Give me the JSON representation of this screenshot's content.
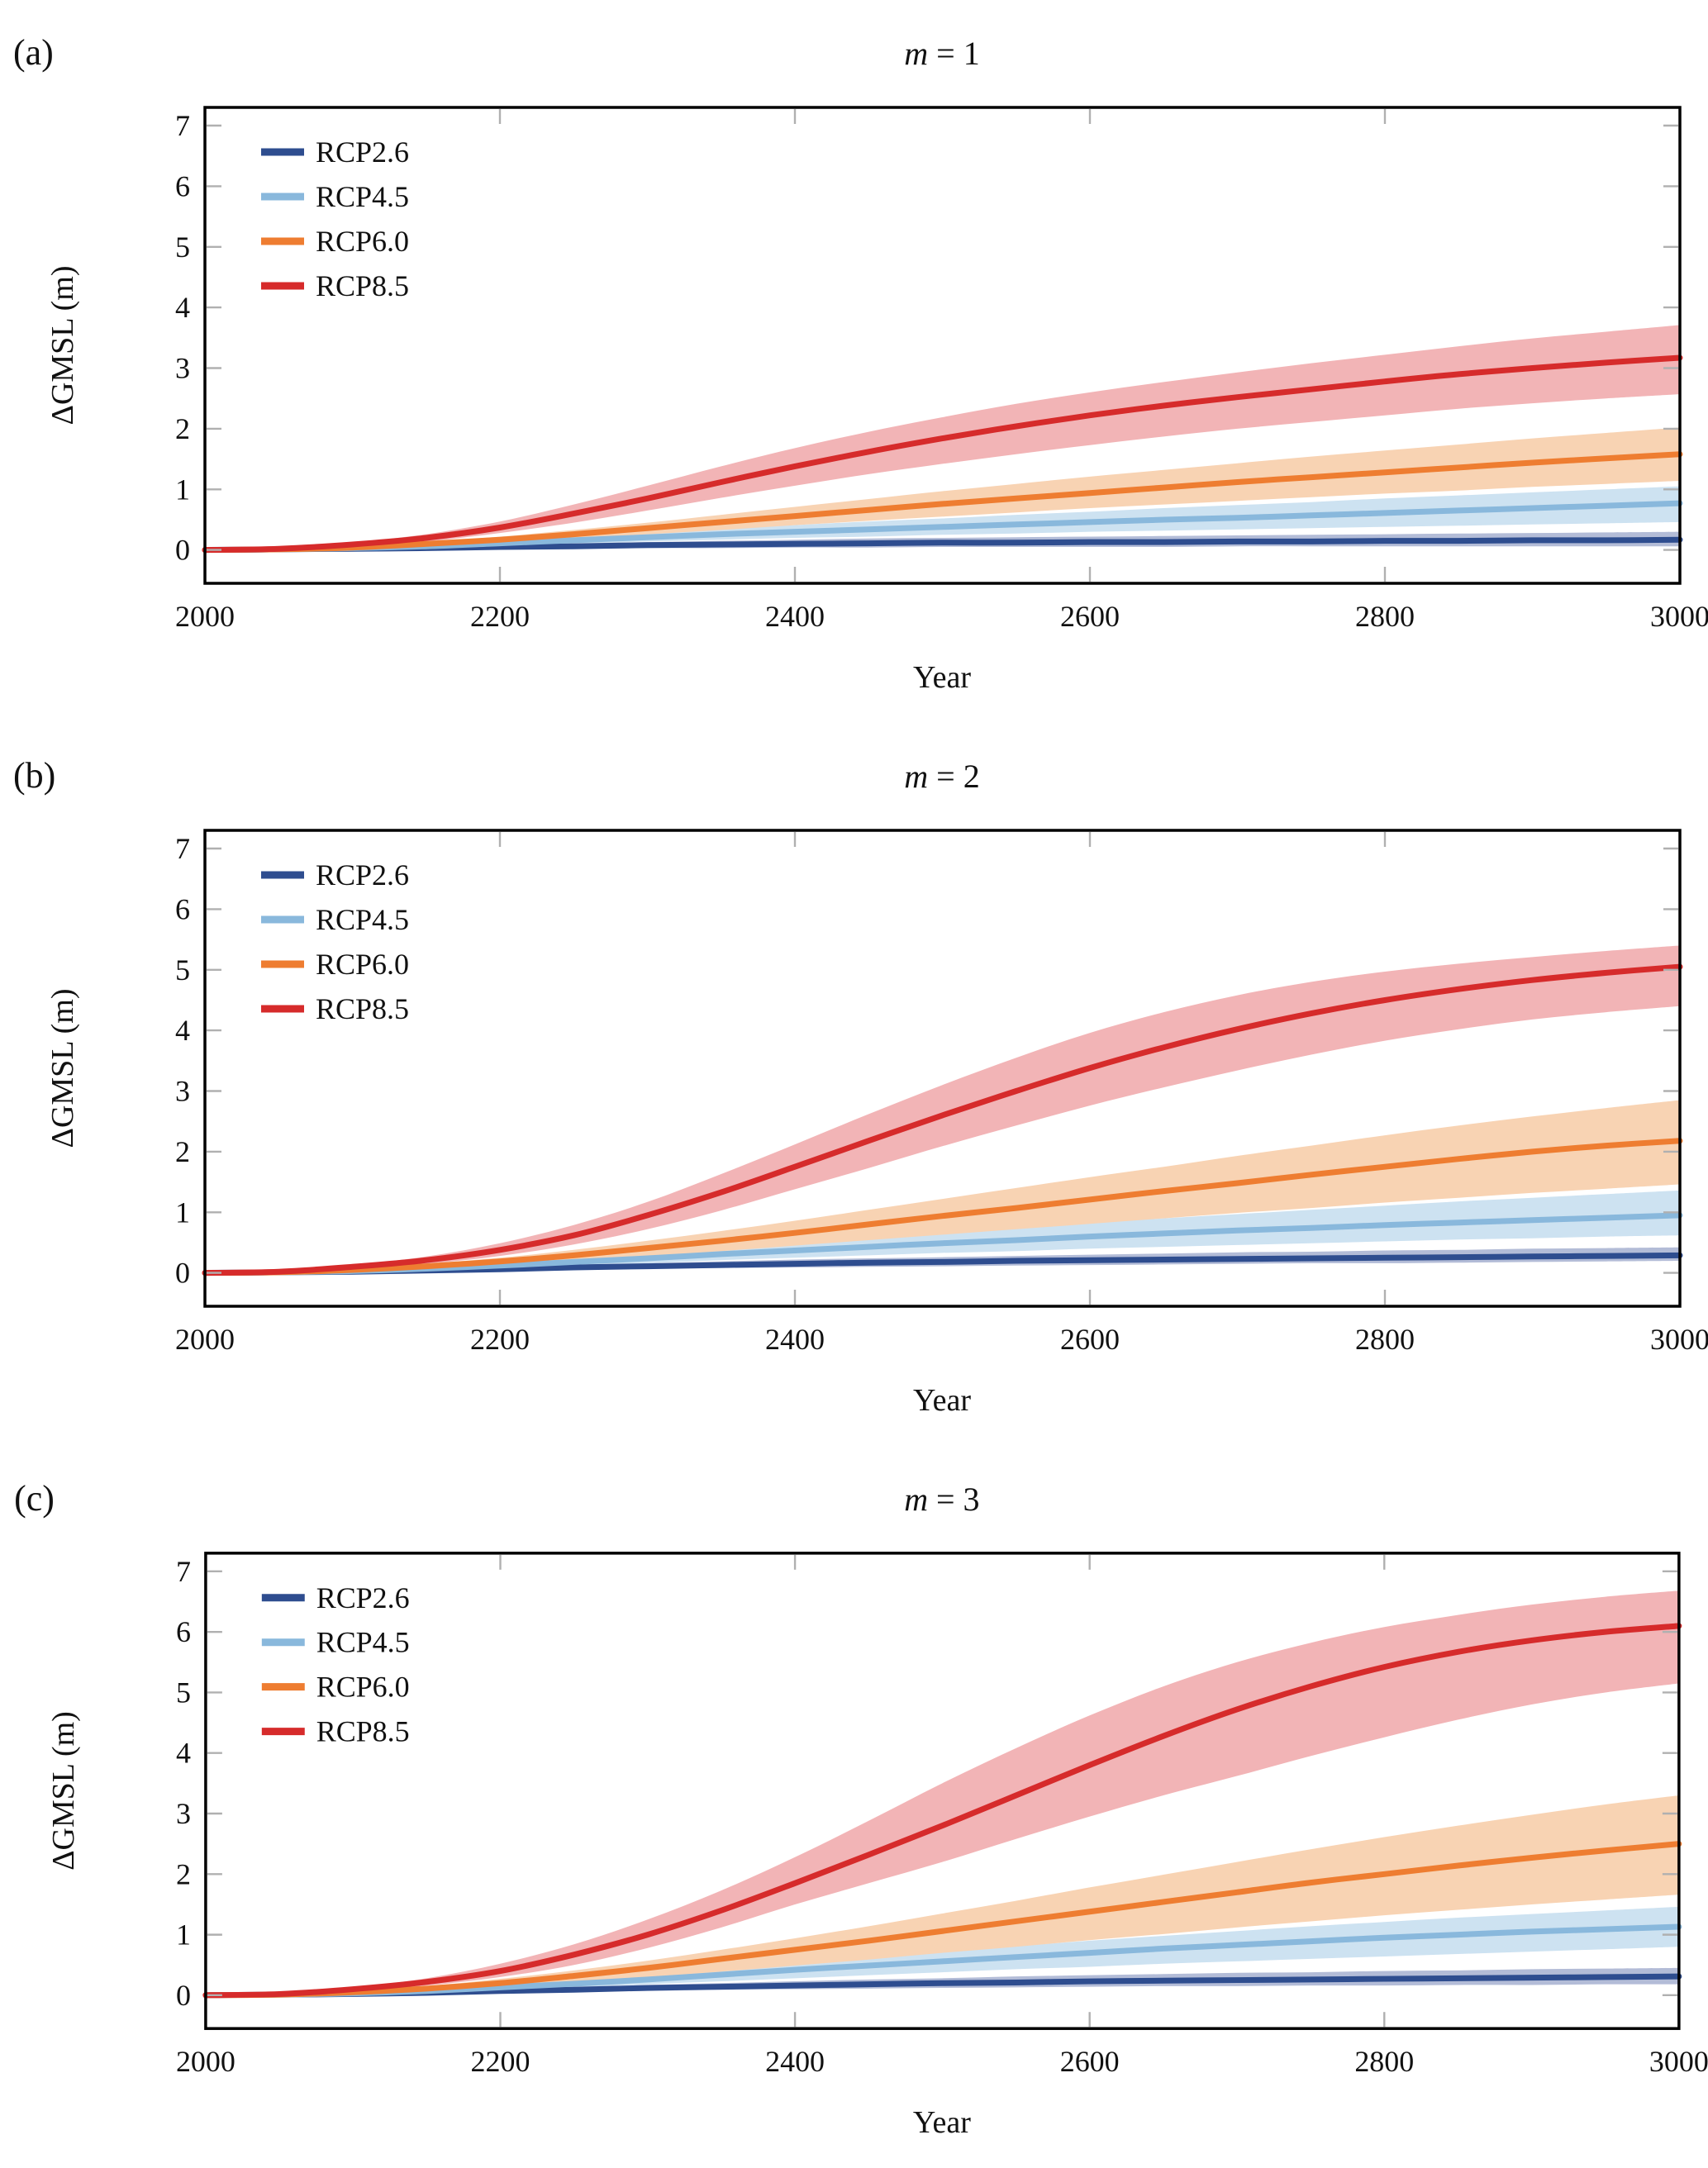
{
  "figure": {
    "background": "#ffffff",
    "spine_color": "#000000",
    "tick_color": "#b0b0b0",
    "text_color": "#111111",
    "xlabel": "Year",
    "ylabel": "ΔGMSL (m)",
    "legend_labels": [
      "RCP2.6",
      "RCP4.5",
      "RCP6.0",
      "RCP8.5"
    ]
  },
  "chart_data": [
    {
      "type": "line",
      "panel_letter": "(a)",
      "title": "m = 1",
      "title_var": "m",
      "title_eq": " = 1",
      "xlabel": "Year",
      "ylabel": "ΔGMSL (m)",
      "xlim": [
        2000,
        3000
      ],
      "ylim": [
        -0.55,
        7.3
      ],
      "xticks": [
        2000,
        2200,
        2400,
        2600,
        2800,
        3000
      ],
      "yticks": [
        0,
        1,
        2,
        3,
        4,
        5,
        6,
        7
      ],
      "grid": false,
      "legend_position": "top-left",
      "x": [
        2000,
        2050,
        2100,
        2150,
        2200,
        2250,
        2300,
        2350,
        2400,
        2450,
        2500,
        2550,
        2600,
        2650,
        2700,
        2750,
        2800,
        2850,
        2900,
        2950,
        3000
      ],
      "series": [
        {
          "name": "RCP2.6",
          "color": "#2e4d8f",
          "band_color": "#b3bcd7",
          "values": [
            0,
            0.01,
            0.02,
            0.03,
            0.05,
            0.06,
            0.08,
            0.09,
            0.1,
            0.11,
            0.12,
            0.12,
            0.13,
            0.13,
            0.14,
            0.14,
            0.15,
            0.15,
            0.16,
            0.16,
            0.17
          ],
          "upper": [
            0,
            0.01,
            0.03,
            0.05,
            0.08,
            0.11,
            0.13,
            0.15,
            0.17,
            0.19,
            0.2,
            0.21,
            0.22,
            0.23,
            0.24,
            0.25,
            0.26,
            0.27,
            0.28,
            0.29,
            0.3
          ],
          "lower": [
            0,
            0.0,
            -0.01,
            0.0,
            0.01,
            0.02,
            0.03,
            0.03,
            0.04,
            0.04,
            0.05,
            0.05,
            0.05,
            0.05,
            0.06,
            0.06,
            0.06,
            0.06,
            0.06,
            0.06,
            0.06
          ]
        },
        {
          "name": "RCP4.5",
          "color": "#89b8dc",
          "band_color": "#cde2f1",
          "values": [
            0,
            0.01,
            0.03,
            0.06,
            0.11,
            0.16,
            0.21,
            0.26,
            0.3,
            0.34,
            0.38,
            0.42,
            0.46,
            0.5,
            0.53,
            0.57,
            0.61,
            0.65,
            0.69,
            0.73,
            0.77
          ],
          "upper": [
            0,
            0.02,
            0.05,
            0.09,
            0.15,
            0.21,
            0.28,
            0.35,
            0.41,
            0.47,
            0.52,
            0.58,
            0.63,
            0.69,
            0.74,
            0.79,
            0.85,
            0.9,
            0.95,
            1.0,
            1.05
          ],
          "lower": [
            0,
            0.01,
            0.02,
            0.04,
            0.07,
            0.1,
            0.14,
            0.17,
            0.2,
            0.22,
            0.25,
            0.27,
            0.3,
            0.32,
            0.34,
            0.36,
            0.38,
            0.4,
            0.42,
            0.44,
            0.46
          ]
        },
        {
          "name": "RCP6.0",
          "color": "#ee7d31",
          "band_color": "#f8d3b3",
          "values": [
            0,
            0.01,
            0.04,
            0.1,
            0.17,
            0.26,
            0.36,
            0.46,
            0.56,
            0.66,
            0.76,
            0.85,
            0.94,
            1.03,
            1.12,
            1.2,
            1.28,
            1.36,
            1.44,
            1.51,
            1.58
          ],
          "upper": [
            0,
            0.02,
            0.06,
            0.13,
            0.22,
            0.33,
            0.45,
            0.58,
            0.71,
            0.84,
            0.97,
            1.09,
            1.21,
            1.32,
            1.43,
            1.54,
            1.64,
            1.74,
            1.84,
            1.93,
            2.02
          ],
          "lower": [
            0,
            0.01,
            0.03,
            0.07,
            0.12,
            0.19,
            0.26,
            0.33,
            0.41,
            0.48,
            0.55,
            0.62,
            0.69,
            0.75,
            0.81,
            0.87,
            0.93,
            0.98,
            1.04,
            1.09,
            1.14
          ]
        },
        {
          "name": "RCP8.5",
          "color": "#d62b2b",
          "band_color": "#f2b4b6",
          "values": [
            0,
            0.02,
            0.09,
            0.2,
            0.37,
            0.6,
            0.85,
            1.12,
            1.38,
            1.62,
            1.84,
            2.04,
            2.22,
            2.38,
            2.52,
            2.65,
            2.78,
            2.9,
            3.0,
            3.09,
            3.17
          ],
          "upper": [
            0,
            0.03,
            0.12,
            0.26,
            0.47,
            0.75,
            1.06,
            1.38,
            1.68,
            1.95,
            2.19,
            2.41,
            2.6,
            2.77,
            2.93,
            3.08,
            3.22,
            3.36,
            3.49,
            3.6,
            3.71
          ],
          "lower": [
            0,
            0.01,
            0.06,
            0.14,
            0.28,
            0.45,
            0.65,
            0.86,
            1.06,
            1.25,
            1.42,
            1.58,
            1.73,
            1.87,
            2.0,
            2.11,
            2.22,
            2.33,
            2.42,
            2.5,
            2.57
          ]
        }
      ]
    },
    {
      "type": "line",
      "panel_letter": "(b)",
      "title": "m = 2",
      "title_var": "m",
      "title_eq": " = 2",
      "xlabel": "Year",
      "ylabel": "ΔGMSL (m)",
      "xlim": [
        2000,
        3000
      ],
      "ylim": [
        -0.55,
        7.3
      ],
      "xticks": [
        2000,
        2200,
        2400,
        2600,
        2800,
        3000
      ],
      "yticks": [
        0,
        1,
        2,
        3,
        4,
        5,
        6,
        7
      ],
      "grid": false,
      "legend_position": "top-left",
      "x": [
        2000,
        2050,
        2100,
        2150,
        2200,
        2250,
        2300,
        2350,
        2400,
        2450,
        2500,
        2550,
        2600,
        2650,
        2700,
        2750,
        2800,
        2850,
        2900,
        2950,
        3000
      ],
      "series": [
        {
          "name": "RCP2.6",
          "color": "#2e4d8f",
          "band_color": "#b3bcd7",
          "values": [
            0,
            0.01,
            0.02,
            0.04,
            0.06,
            0.09,
            0.11,
            0.13,
            0.15,
            0.17,
            0.18,
            0.2,
            0.21,
            0.22,
            0.23,
            0.24,
            0.25,
            0.26,
            0.27,
            0.28,
            0.29
          ],
          "upper": [
            0,
            0.01,
            0.03,
            0.06,
            0.09,
            0.13,
            0.16,
            0.19,
            0.22,
            0.24,
            0.26,
            0.28,
            0.3,
            0.32,
            0.34,
            0.35,
            0.37,
            0.38,
            0.4,
            0.41,
            0.42
          ],
          "lower": [
            0,
            0.0,
            0.0,
            0.01,
            0.03,
            0.05,
            0.07,
            0.08,
            0.09,
            0.1,
            0.11,
            0.12,
            0.13,
            0.14,
            0.15,
            0.16,
            0.16,
            0.17,
            0.18,
            0.19,
            0.2
          ]
        },
        {
          "name": "RCP4.5",
          "color": "#89b8dc",
          "band_color": "#cde2f1",
          "values": [
            0,
            0.01,
            0.03,
            0.07,
            0.12,
            0.18,
            0.24,
            0.31,
            0.37,
            0.43,
            0.49,
            0.54,
            0.6,
            0.65,
            0.7,
            0.74,
            0.79,
            0.83,
            0.87,
            0.91,
            0.95
          ],
          "upper": [
            0,
            0.02,
            0.05,
            0.1,
            0.16,
            0.24,
            0.32,
            0.41,
            0.5,
            0.58,
            0.67,
            0.75,
            0.83,
            0.9,
            0.97,
            1.04,
            1.11,
            1.18,
            1.24,
            1.3,
            1.36
          ],
          "lower": [
            0,
            0.01,
            0.02,
            0.04,
            0.08,
            0.12,
            0.16,
            0.21,
            0.25,
            0.29,
            0.33,
            0.36,
            0.4,
            0.43,
            0.46,
            0.49,
            0.52,
            0.55,
            0.57,
            0.6,
            0.62
          ]
        },
        {
          "name": "RCP6.0",
          "color": "#ee7d31",
          "band_color": "#f8d3b3",
          "values": [
            0,
            0.01,
            0.05,
            0.11,
            0.19,
            0.29,
            0.41,
            0.53,
            0.66,
            0.8,
            0.94,
            1.07,
            1.21,
            1.35,
            1.48,
            1.62,
            1.75,
            1.88,
            2.0,
            2.1,
            2.18
          ],
          "upper": [
            0,
            0.02,
            0.07,
            0.15,
            0.25,
            0.38,
            0.53,
            0.69,
            0.86,
            1.04,
            1.22,
            1.4,
            1.58,
            1.75,
            1.93,
            2.1,
            2.27,
            2.43,
            2.58,
            2.72,
            2.85
          ],
          "lower": [
            0,
            0.01,
            0.03,
            0.07,
            0.13,
            0.2,
            0.28,
            0.36,
            0.45,
            0.54,
            0.63,
            0.72,
            0.81,
            0.9,
            0.99,
            1.07,
            1.16,
            1.24,
            1.32,
            1.39,
            1.46
          ]
        },
        {
          "name": "RCP8.5",
          "color": "#d62b2b",
          "band_color": "#f2b4b6",
          "values": [
            0,
            0.02,
            0.1,
            0.21,
            0.38,
            0.62,
            0.95,
            1.33,
            1.75,
            2.18,
            2.6,
            3.0,
            3.38,
            3.72,
            4.02,
            4.28,
            4.5,
            4.68,
            4.83,
            4.95,
            5.05
          ],
          "upper": [
            0,
            0.03,
            0.13,
            0.27,
            0.49,
            0.79,
            1.17,
            1.63,
            2.12,
            2.62,
            3.1,
            3.55,
            3.96,
            4.3,
            4.58,
            4.8,
            4.97,
            5.1,
            5.21,
            5.31,
            5.4
          ],
          "lower": [
            0,
            0.01,
            0.07,
            0.15,
            0.28,
            0.47,
            0.72,
            1.03,
            1.38,
            1.73,
            2.09,
            2.43,
            2.76,
            3.06,
            3.34,
            3.6,
            3.83,
            4.02,
            4.18,
            4.3,
            4.4
          ]
        }
      ]
    },
    {
      "type": "line",
      "panel_letter": "(c)",
      "title": "m = 3",
      "title_var": "m",
      "title_eq": " = 3",
      "xlabel": "Year",
      "ylabel": "ΔGMSL (m)",
      "xlim": [
        2000,
        3000
      ],
      "ylim": [
        -0.55,
        7.3
      ],
      "xticks": [
        2000,
        2200,
        2400,
        2600,
        2800,
        3000
      ],
      "yticks": [
        0,
        1,
        2,
        3,
        4,
        5,
        6,
        7
      ],
      "grid": false,
      "legend_position": "top-left",
      "x": [
        2000,
        2050,
        2100,
        2150,
        2200,
        2250,
        2300,
        2350,
        2400,
        2450,
        2500,
        2550,
        2600,
        2650,
        2700,
        2750,
        2800,
        2850,
        2900,
        2950,
        3000
      ],
      "series": [
        {
          "name": "RCP2.6",
          "color": "#2e4d8f",
          "band_color": "#b3bcd7",
          "values": [
            0,
            0.01,
            0.02,
            0.04,
            0.07,
            0.09,
            0.12,
            0.14,
            0.16,
            0.18,
            0.2,
            0.21,
            0.23,
            0.24,
            0.25,
            0.26,
            0.27,
            0.28,
            0.29,
            0.3,
            0.31
          ],
          "upper": [
            0,
            0.01,
            0.03,
            0.06,
            0.1,
            0.13,
            0.17,
            0.2,
            0.23,
            0.26,
            0.28,
            0.31,
            0.33,
            0.35,
            0.37,
            0.38,
            0.4,
            0.41,
            0.43,
            0.44,
            0.45
          ],
          "lower": [
            0,
            0.0,
            0.0,
            0.01,
            0.04,
            0.06,
            0.07,
            0.09,
            0.1,
            0.11,
            0.12,
            0.13,
            0.14,
            0.15,
            0.15,
            0.16,
            0.16,
            0.17,
            0.17,
            0.18,
            0.18
          ]
        },
        {
          "name": "RCP4.5",
          "color": "#89b8dc",
          "band_color": "#cde2f1",
          "values": [
            0,
            0.01,
            0.03,
            0.07,
            0.13,
            0.19,
            0.26,
            0.34,
            0.42,
            0.49,
            0.56,
            0.63,
            0.7,
            0.77,
            0.83,
            0.89,
            0.95,
            1.0,
            1.05,
            1.09,
            1.13
          ],
          "upper": [
            0,
            0.02,
            0.05,
            0.1,
            0.17,
            0.25,
            0.34,
            0.44,
            0.53,
            0.63,
            0.72,
            0.81,
            0.9,
            0.98,
            1.06,
            1.14,
            1.21,
            1.28,
            1.34,
            1.4,
            1.46
          ],
          "lower": [
            0,
            0.01,
            0.02,
            0.05,
            0.09,
            0.13,
            0.18,
            0.23,
            0.28,
            0.33,
            0.38,
            0.43,
            0.47,
            0.52,
            0.56,
            0.6,
            0.64,
            0.68,
            0.72,
            0.76,
            0.8
          ]
        },
        {
          "name": "RCP6.0",
          "color": "#ee7d31",
          "band_color": "#f8d3b3",
          "values": [
            0,
            0.01,
            0.05,
            0.11,
            0.2,
            0.32,
            0.45,
            0.6,
            0.75,
            0.9,
            1.06,
            1.22,
            1.38,
            1.54,
            1.7,
            1.86,
            2.0,
            2.14,
            2.27,
            2.39,
            2.5
          ],
          "upper": [
            0,
            0.02,
            0.07,
            0.15,
            0.27,
            0.41,
            0.57,
            0.75,
            0.94,
            1.14,
            1.35,
            1.56,
            1.78,
            1.99,
            2.2,
            2.41,
            2.61,
            2.8,
            2.98,
            3.15,
            3.3
          ],
          "lower": [
            0,
            0.01,
            0.03,
            0.08,
            0.14,
            0.21,
            0.3,
            0.39,
            0.49,
            0.59,
            0.7,
            0.8,
            0.91,
            1.01,
            1.12,
            1.22,
            1.32,
            1.41,
            1.5,
            1.58,
            1.66
          ]
        },
        {
          "name": "RCP8.5",
          "color": "#d62b2b",
          "band_color": "#f2b4b6",
          "values": [
            0,
            0.02,
            0.1,
            0.22,
            0.4,
            0.67,
            1.0,
            1.4,
            1.85,
            2.32,
            2.8,
            3.3,
            3.8,
            4.28,
            4.72,
            5.1,
            5.42,
            5.67,
            5.86,
            6.0,
            6.1
          ],
          "upper": [
            0,
            0.03,
            0.13,
            0.28,
            0.52,
            0.84,
            1.25,
            1.73,
            2.28,
            2.88,
            3.5,
            4.08,
            4.62,
            5.1,
            5.5,
            5.82,
            6.08,
            6.28,
            6.45,
            6.58,
            6.68
          ],
          "lower": [
            0,
            0.01,
            0.07,
            0.16,
            0.3,
            0.5,
            0.78,
            1.12,
            1.5,
            1.85,
            2.2,
            2.58,
            2.95,
            3.3,
            3.62,
            3.95,
            4.26,
            4.55,
            4.8,
            5.0,
            5.15
          ]
        }
      ]
    }
  ]
}
